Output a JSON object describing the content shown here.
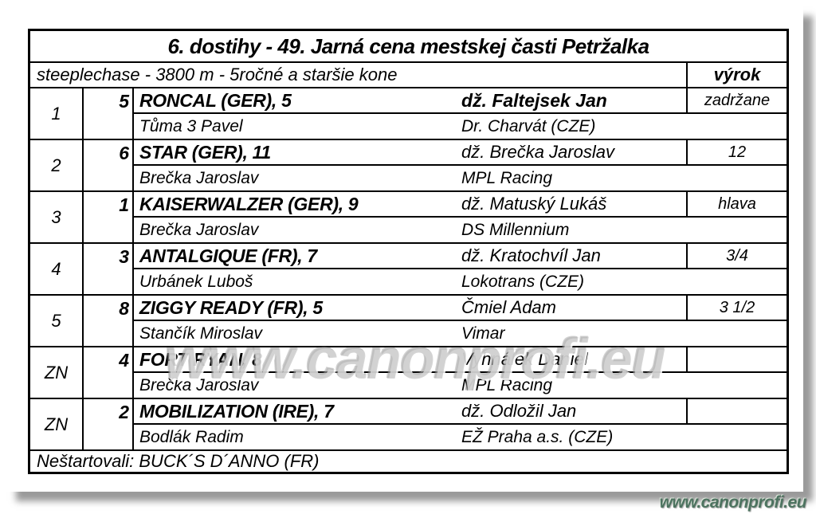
{
  "page": {
    "title": "6. dostihy - 49. Jarná cena mestskej časti Petržalka",
    "subtitle": "steeplechase - 3800 m - 5ročné a staršie kone",
    "verdict_header": "výrok",
    "footer_note": "Neštartovali: BUCK´S D´ANNO (FR)",
    "watermark": "www.canonprofi.eu",
    "logo_text": "www.canonprofi.eu",
    "colors": {
      "logo_green": "#4d7360",
      "watermark_gray": "#acacac",
      "border_black": "#000000",
      "page_shadow_gray": "#8a8a8a"
    }
  },
  "rows": [
    {
      "place": "1",
      "number": "5",
      "horse": "RONCAL (GER), 5",
      "trainer": "Tůma 3 Pavel",
      "jockey": "dž. Faltejsek Jan",
      "owner": "Dr. Charvát (CZE)",
      "verdict": "zadržane"
    },
    {
      "place": "2",
      "number": "6",
      "horse": "STAR (GER), 11",
      "trainer": "Brečka Jaroslav",
      "jockey": "dž. Brečka Jaroslav",
      "owner": "MPL Racing",
      "verdict": "12"
    },
    {
      "place": "3",
      "number": "1",
      "horse": "KAISERWALZER (GER), 9",
      "trainer": "Brečka Jaroslav",
      "jockey": "dž. Matuský Lukáš",
      "owner": "DS Millennium",
      "verdict": "hlava"
    },
    {
      "place": "4",
      "number": "3",
      "horse": "ANTALGIQUE (FR), 7",
      "trainer": "Urbánek Luboš",
      "jockey": "dž. Kratochvíl Jan",
      "owner": "Lokotrans (CZE)",
      "verdict": "3/4"
    },
    {
      "place": "5",
      "number": "8",
      "horse": "ZIGGY READY (FR), 5",
      "trainer": "Stančík Miroslav",
      "jockey": "Čmiel Adam",
      "owner": "Vimar",
      "verdict": "3 1/2"
    },
    {
      "place": "ZN",
      "number": "4",
      "horse": "FORT RYAN, 8",
      "trainer": "Brečka Jaroslav",
      "jockey": "Vyhnálek Daniel",
      "owner": "MPL Racing",
      "verdict": ""
    },
    {
      "place": "ZN",
      "number": "2",
      "horse": "MOBILIZATION (IRE), 7",
      "trainer": "Bodlák Radim",
      "jockey": "dž. Odložil Jan",
      "owner": "EŽ Praha a.s. (CZE)",
      "verdict": ""
    }
  ]
}
